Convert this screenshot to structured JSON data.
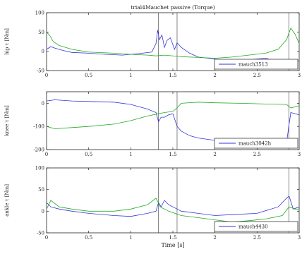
{
  "chart_data": [
    {
      "type": "line",
      "title": "trial4Mauchet passive (Torque)",
      "ylabel": "hip τ [Nm]",
      "xlabel": "",
      "xlim": [
        0,
        3
      ],
      "ylim": [
        -50,
        100
      ],
      "yticks": [
        "100",
        "50",
        "0",
        "-50"
      ],
      "xticks": [
        "0",
        "0.5",
        "1",
        "1.5",
        "2",
        "2.5",
        "3"
      ],
      "vlines": [
        1.33,
        1.55,
        2.88
      ],
      "legend": {
        "position": "bottom-right",
        "label": "mauch3513"
      },
      "series": [
        {
          "color": "#3333dd",
          "x": [
            0,
            0.05,
            0.1,
            0.2,
            0.3,
            0.5,
            0.7,
            0.9,
            1.1,
            1.25,
            1.3,
            1.32,
            1.34,
            1.37,
            1.4,
            1.43,
            1.47,
            1.52,
            1.55,
            1.6,
            1.7,
            1.8,
            2.0,
            2.2,
            2.4,
            2.6,
            2.8,
            2.88,
            2.92,
            3.0
          ],
          "y": [
            5,
            12,
            8,
            2,
            -3,
            -5,
            -8,
            -10,
            -6,
            -2,
            20,
            55,
            30,
            42,
            10,
            28,
            35,
            5,
            22,
            10,
            -5,
            -15,
            -20,
            -25,
            -22,
            -18,
            -30,
            -28,
            -22,
            -25
          ]
        },
        {
          "color": "#22aa22",
          "x": [
            0,
            0.04,
            0.08,
            0.15,
            0.3,
            0.5,
            0.8,
            1.0,
            1.2,
            1.3,
            1.4,
            1.6,
            1.8,
            2.0,
            2.2,
            2.4,
            2.6,
            2.75,
            2.85,
            2.9,
            2.95,
            3.0
          ],
          "y": [
            50,
            40,
            25,
            15,
            5,
            -2,
            -5,
            -8,
            -10,
            -12,
            -10,
            -14,
            -16,
            -18,
            -15,
            -10,
            -5,
            5,
            30,
            60,
            45,
            20
          ]
        }
      ]
    },
    {
      "type": "line",
      "title": "",
      "ylabel": "knee τ [Nm]",
      "xlabel": "",
      "xlim": [
        0,
        3
      ],
      "ylim": [
        -200,
        50
      ],
      "yticks": [
        "0",
        "-100",
        "-200"
      ],
      "xticks": [
        "0",
        "0.5",
        "1",
        "1.5",
        "2",
        "2.5",
        "3"
      ],
      "vlines": [
        1.33,
        1.55,
        2.88
      ],
      "legend": {
        "position": "bottom-right",
        "label": "mauch3042h"
      },
      "series": [
        {
          "color": "#3333dd",
          "x": [
            0,
            0.1,
            0.3,
            0.5,
            0.8,
            1.0,
            1.2,
            1.3,
            1.33,
            1.36,
            1.4,
            1.45,
            1.5,
            1.55,
            1.6,
            1.7,
            1.8,
            2.0,
            2.3,
            2.6,
            2.85,
            2.9,
            3.0
          ],
          "y": [
            10,
            15,
            10,
            8,
            5,
            -5,
            -25,
            -40,
            -80,
            -60,
            -60,
            -50,
            -45,
            -100,
            -120,
            -140,
            -150,
            -160,
            -170,
            -180,
            -170,
            -40,
            -50
          ]
        },
        {
          "color": "#22aa22",
          "x": [
            0,
            0.1,
            0.3,
            0.5,
            0.8,
            1.0,
            1.2,
            1.33,
            1.4,
            1.5,
            1.55,
            1.6,
            1.8,
            2.0,
            2.3,
            2.6,
            2.85,
            2.9,
            3.0
          ],
          "y": [
            -100,
            -110,
            -105,
            -100,
            -90,
            -75,
            -55,
            -45,
            -40,
            -35,
            -20,
            0,
            5,
            2,
            0,
            -3,
            -5,
            -20,
            -10
          ]
        }
      ]
    },
    {
      "type": "line",
      "title": "",
      "ylabel": "ankle τ [Nm]",
      "xlabel": "Time [s]",
      "xlim": [
        0,
        3
      ],
      "ylim": [
        -50,
        100
      ],
      "yticks": [
        "100",
        "50",
        "0",
        "-50"
      ],
      "xticks": [
        "0",
        "0.5",
        "1",
        "1.5",
        "2",
        "2.5",
        "3"
      ],
      "vlines": [
        1.33,
        1.55,
        2.88
      ],
      "legend": {
        "position": "bottom-right",
        "label": "mauch4430"
      },
      "series": [
        {
          "color": "#3333dd",
          "x": [
            0,
            0.05,
            0.15,
            0.3,
            0.5,
            0.8,
            1.0,
            1.2,
            1.3,
            1.33,
            1.36,
            1.4,
            1.45,
            1.55,
            1.6,
            1.8,
            2.0,
            2.2,
            2.5,
            2.75,
            2.85,
            2.88,
            2.93,
            3.0
          ],
          "y": [
            20,
            10,
            5,
            0,
            -5,
            -10,
            -12,
            -5,
            0,
            20,
            10,
            25,
            15,
            5,
            0,
            -5,
            -10,
            -8,
            -5,
            10,
            30,
            35,
            5,
            10
          ]
        },
        {
          "color": "#22aa22",
          "x": [
            0,
            0.05,
            0.15,
            0.3,
            0.5,
            0.8,
            1.0,
            1.2,
            1.3,
            1.35,
            1.45,
            1.6,
            1.8,
            2.0,
            2.2,
            2.4,
            2.6,
            2.8,
            2.88,
            2.95,
            3.0
          ],
          "y": [
            5,
            25,
            10,
            5,
            0,
            0,
            5,
            15,
            30,
            10,
            0,
            -10,
            -15,
            -20,
            -25,
            -22,
            -18,
            -10,
            10,
            5,
            5
          ]
        }
      ]
    }
  ]
}
